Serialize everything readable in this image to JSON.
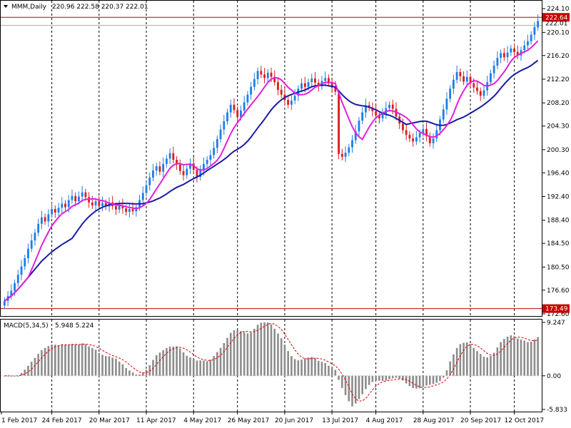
{
  "header": {
    "symbol": "MMM,Daily",
    "ohlc": "220.96 222.58 220.37 222.01"
  },
  "colors": {
    "up": "#1e7ee6",
    "down": "#d81e1e",
    "ma_fast": "#e020e0",
    "ma_slow": "#1a1aa8",
    "hline": "#c80000",
    "macd_hist": "#8c8c8c",
    "macd_signal": "#e00000",
    "grid": "#000000"
  },
  "chart_data": [
    {
      "type": "candlestick",
      "title": "",
      "ylim": [
        172.6,
        224.6
      ],
      "price_ticks": [
        "224.10",
        "220.10",
        "216.20",
        "212.20",
        "208.20",
        "204.30",
        "200.30",
        "196.40",
        "192.40",
        "188.40",
        "184.50",
        "180.50",
        "176.60",
        "172.60"
      ],
      "current_price_label": "222.01",
      "hline_top": {
        "value": 222.64,
        "label": "222.64"
      },
      "hline_bottom": {
        "value": 173.49,
        "label": "173.49"
      },
      "x_labels": [
        "1 Feb 2017",
        "24 Feb 2017",
        "20 Mar 2017",
        "11 Apr 2017",
        "4 May 2017",
        "26 May 2017",
        "20 Jun 2017",
        "13 Jul 2017",
        "4 Aug 2017",
        "28 Aug 2017",
        "20 Sep 2017",
        "12 Oct 2017"
      ],
      "closes": [
        174.8,
        175.6,
        176.5,
        177.8,
        179.2,
        180.6,
        182.0,
        183.6,
        185.0,
        186.3,
        187.8,
        188.9,
        188.2,
        189.4,
        190.3,
        189.7,
        190.5,
        191.2,
        190.6,
        191.8,
        192.5,
        191.6,
        192.4,
        193.1,
        192.3,
        191.4,
        190.9,
        191.6,
        190.8,
        191.3,
        190.7,
        191.4,
        190.8,
        190.2,
        190.9,
        190.4,
        189.8,
        190.3,
        189.9,
        190.6,
        191.8,
        193.0,
        194.3,
        195.6,
        196.8,
        197.5,
        196.6,
        197.9,
        198.8,
        199.7,
        198.6,
        197.8,
        196.7,
        196.0,
        197.1,
        198.0,
        196.9,
        195.7,
        196.8,
        197.9,
        198.6,
        199.4,
        200.6,
        202.1,
        203.7,
        205.1,
        206.6,
        207.9,
        207.0,
        205.8,
        206.9,
        208.3,
        209.6,
        210.9,
        212.2,
        213.6,
        213.0,
        212.4,
        213.3,
        212.6,
        211.7,
        210.4,
        209.6,
        208.7,
        207.9,
        208.6,
        209.4,
        210.6,
        211.5,
        210.9,
        211.7,
        212.3,
        211.6,
        211.0,
        211.9,
        212.4,
        211.5,
        210.8,
        210.1,
        199.6,
        199.1,
        199.8,
        200.7,
        201.9,
        203.4,
        205.2,
        206.6,
        207.8,
        207.4,
        206.8,
        206.1,
        205.6,
        206.4,
        207.3,
        207.9,
        207.2,
        205.9,
        204.7,
        203.6,
        202.8,
        202.2,
        201.7,
        202.4,
        203.1,
        203.8,
        202.6,
        201.4,
        202.2,
        203.6,
        205.4,
        207.1,
        208.9,
        210.6,
        212.1,
        213.4,
        212.7,
        211.8,
        212.6,
        211.5,
        210.8,
        210.2,
        209.4,
        210.3,
        211.7,
        213.2,
        214.5,
        215.8,
        216.6,
        215.9,
        216.7,
        217.4,
        216.8,
        216.2,
        217.1,
        217.9,
        218.6,
        219.7,
        221.0,
        222.01
      ],
      "opens": [
        174.0,
        174.8,
        175.6,
        176.5,
        177.8,
        179.2,
        180.6,
        182.0,
        183.6,
        185.0,
        186.3,
        187.8,
        188.9,
        188.2,
        189.4,
        190.3,
        189.7,
        190.5,
        191.2,
        190.6,
        191.8,
        192.5,
        191.6,
        192.4,
        193.1,
        192.3,
        191.4,
        190.9,
        191.6,
        190.8,
        191.3,
        190.7,
        191.4,
        190.8,
        190.2,
        190.9,
        190.4,
        189.8,
        190.3,
        189.9,
        190.6,
        191.8,
        193.0,
        194.3,
        195.6,
        196.8,
        197.5,
        196.6,
        197.9,
        198.8,
        199.7,
        198.6,
        197.8,
        196.7,
        196.0,
        197.1,
        198.0,
        196.9,
        195.7,
        196.8,
        197.9,
        198.6,
        199.4,
        200.6,
        202.1,
        203.7,
        205.1,
        206.6,
        207.9,
        207.0,
        205.8,
        206.9,
        208.3,
        209.6,
        210.9,
        212.2,
        213.6,
        213.0,
        212.4,
        213.3,
        212.6,
        211.7,
        210.4,
        209.6,
        208.7,
        207.9,
        208.6,
        209.4,
        210.6,
        211.5,
        210.9,
        211.7,
        212.3,
        211.6,
        211.0,
        211.9,
        212.4,
        211.5,
        210.8,
        209.8,
        199.6,
        199.1,
        199.8,
        200.7,
        201.9,
        203.4,
        205.2,
        206.6,
        207.8,
        207.4,
        206.8,
        206.1,
        205.6,
        206.4,
        207.3,
        207.9,
        207.2,
        205.9,
        204.7,
        203.6,
        202.8,
        202.2,
        201.7,
        202.4,
        203.1,
        203.8,
        202.6,
        201.4,
        202.2,
        203.6,
        205.4,
        207.1,
        208.9,
        210.6,
        212.1,
        213.4,
        212.7,
        211.8,
        212.6,
        211.5,
        210.8,
        210.2,
        209.4,
        210.3,
        211.7,
        213.2,
        214.5,
        215.8,
        216.6,
        215.9,
        216.7,
        217.4,
        216.8,
        216.2,
        217.1,
        217.9,
        218.6,
        219.7,
        220.96
      ],
      "ma_fast": [],
      "ma_slow": [],
      "ma_fast_period": 8,
      "ma_slow_period": 21
    },
    {
      "type": "bar",
      "title": "MACD(5,34,5)",
      "values_label": "5.948 5.224",
      "ylim": [
        -5.833,
        9.247
      ],
      "ticks": [
        "9.247",
        "0.00",
        "-5.833"
      ]
    }
  ]
}
